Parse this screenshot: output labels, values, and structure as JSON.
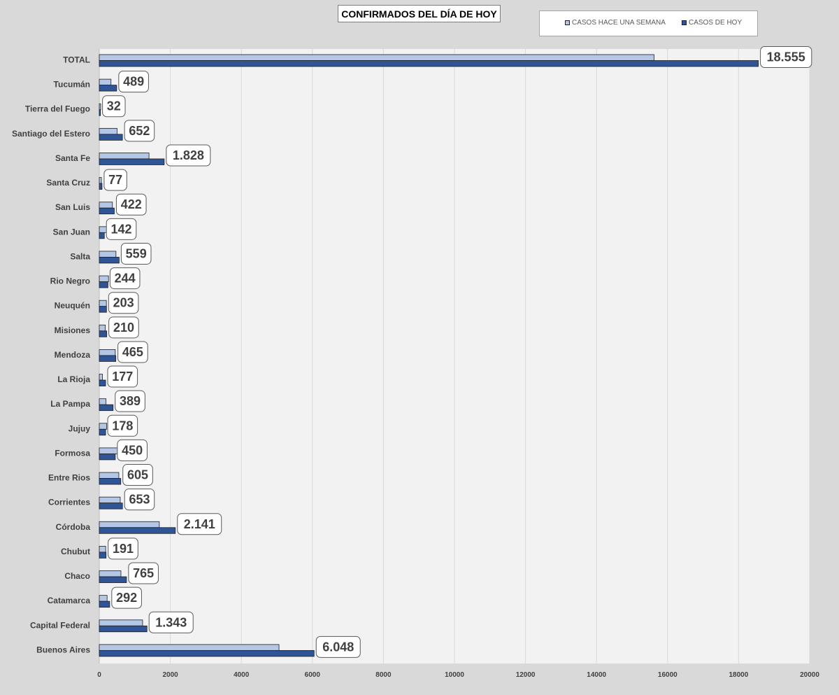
{
  "title": "CONFIRMADOS DEL DÍA DE HOY",
  "legend": {
    "week": "CASOS HACE UNA SEMANA",
    "today": "CASOS DE HOY"
  },
  "colors": {
    "week": "#b4c7e7",
    "today": "#2f5597",
    "plot_bg": "#f2f2f2",
    "page_bg": "#d9d9d9",
    "grid": "#d9d9d9"
  },
  "chart_data": {
    "type": "bar",
    "orientation": "horizontal",
    "title": "CONFIRMADOS DEL DÍA DE HOY",
    "xlim": [
      0,
      20000
    ],
    "x_ticks": [
      "0",
      "2000",
      "4000",
      "6000",
      "8000",
      "10000",
      "12000",
      "14000",
      "16000",
      "18000",
      "20000"
    ],
    "categories": [
      "TOTAL",
      "Tucumán",
      "Tierra del Fuego",
      "Santiago del Estero",
      "Santa Fe",
      "Santa Cruz",
      "San Luis",
      "San Juan",
      "Salta",
      "Rio Negro",
      "Neuquén",
      "Misiones",
      "Mendoza",
      "La Rioja",
      "La Pampa",
      "Jujuy",
      "Formosa",
      "Entre Rios",
      "Corrientes",
      "Córdoba",
      "Chubut",
      "Chaco",
      "Catamarca",
      "Capital Federal",
      "Buenos Aires"
    ],
    "series": [
      {
        "name": "CASOS HACE UNA SEMANA",
        "values": [
          15620,
          330,
          40,
          500,
          1400,
          60,
          370,
          230,
          470,
          260,
          200,
          170,
          450,
          90,
          190,
          210,
          520,
          550,
          590,
          1690,
          180,
          610,
          220,
          1220,
          5060
        ]
      },
      {
        "name": "CASOS DE HOY",
        "values": [
          18555,
          489,
          32,
          652,
          1828,
          77,
          422,
          142,
          559,
          244,
          203,
          210,
          465,
          177,
          389,
          178,
          450,
          605,
          653,
          2141,
          191,
          765,
          292,
          1343,
          6048
        ]
      }
    ],
    "data_labels": [
      "18.555",
      "489",
      "32",
      "652",
      "1.828",
      "77",
      "422",
      "142",
      "559",
      "244",
      "203",
      "210",
      "465",
      "177",
      "389",
      "178",
      "450",
      "605",
      "653",
      "2.141",
      "191",
      "765",
      "292",
      "1.343",
      "6.048"
    ],
    "grid": true,
    "legend_position": "top-right"
  }
}
